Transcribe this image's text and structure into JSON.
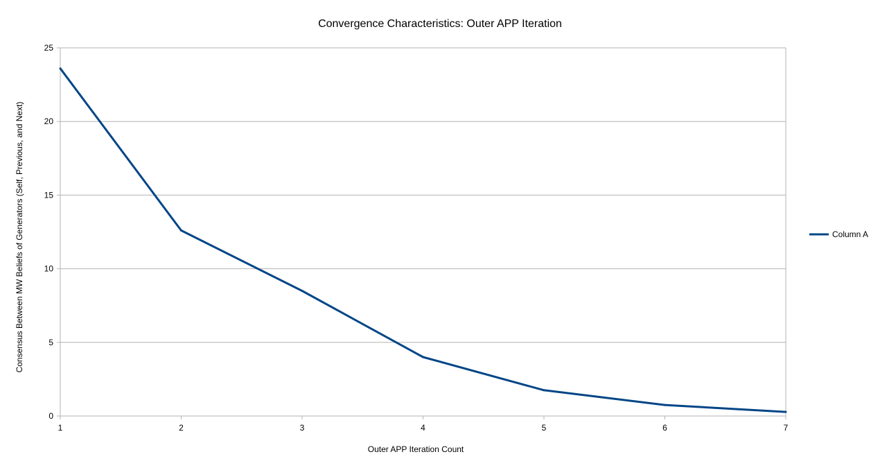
{
  "chart_data": {
    "type": "line",
    "title": "Convergence Characteristics: Outer APP Iteration",
    "xlabel": "Outer APP Iteration Count",
    "ylabel": "Consensus Between MW Beliefs of Generators (Self, Previous, and Next)",
    "x": [
      1,
      2,
      3,
      4,
      5,
      6,
      7
    ],
    "xlim": [
      1,
      7
    ],
    "ylim": [
      0,
      25
    ],
    "x_ticks": [
      "1",
      "2",
      "3",
      "4",
      "5",
      "6",
      "7"
    ],
    "y_ticks": [
      "0",
      "5",
      "10",
      "15",
      "20",
      "25"
    ],
    "grid": "horizontal",
    "legend_position": "right",
    "series": [
      {
        "name": "Column A",
        "color": "#004586",
        "values": [
          23.6,
          12.6,
          8.5,
          4.0,
          1.75,
          0.75,
          0.28
        ]
      }
    ]
  }
}
